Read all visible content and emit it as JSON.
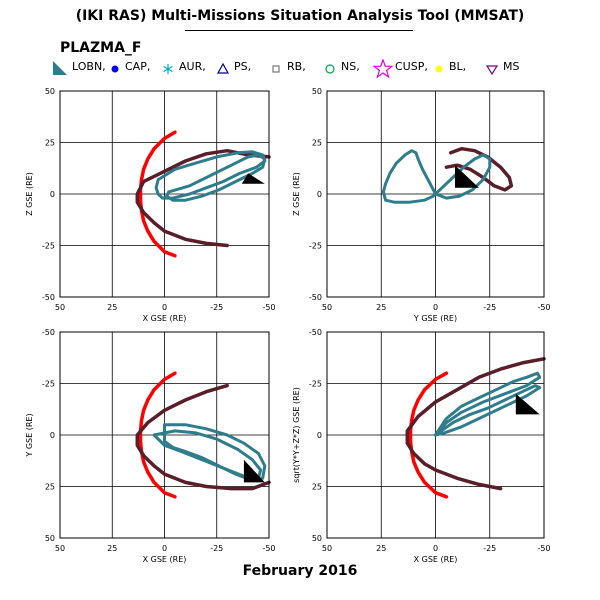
{
  "header": {
    "title": "(IKI RAS) Multi-Missions Situation Analysis Tool (MMSAT)",
    "mission": "PLAZMA_F"
  },
  "legend": [
    {
      "label": "LOBN,",
      "symbol": "lobe-triangle",
      "color": "#2E7D8C"
    },
    {
      "label": "CAP,",
      "symbol": "filled-circle",
      "color": "#0000FF"
    },
    {
      "label": "AUR,",
      "symbol": "asterisk",
      "color": "#00AACC"
    },
    {
      "label": "PS,",
      "symbol": "open-triangle",
      "color": "#000080"
    },
    {
      "label": "RB,",
      "symbol": "open-square",
      "color": "#777777"
    },
    {
      "label": "NS,",
      "symbol": "open-circle",
      "color": "#00A050"
    },
    {
      "label": "CUSP,",
      "symbol": "open-star",
      "color": "#E000E0"
    },
    {
      "label": "BL,",
      "symbol": "filled-circle",
      "color": "#FFFF00"
    },
    {
      "label": "MS",
      "symbol": "open-triangle-down",
      "color": "#800080"
    }
  ],
  "footer": {
    "date": "February 2016"
  },
  "colors": {
    "magnetopause": "#FF0000",
    "bow_shock": "#5A1E2A",
    "orbit": "#2E7D8C",
    "sun_marker": "#000000"
  },
  "chart_data": [
    {
      "type": "scatter",
      "panel": "top-left",
      "xlabel": "X GSE (RE)",
      "ylabel": "Z GSE (RE)",
      "xlim": [
        50,
        -50
      ],
      "ylim": [
        -50,
        50
      ],
      "xticks": [
        "50",
        "25",
        "0",
        "-25",
        "-50"
      ],
      "yticks": [
        "-50",
        "-25",
        "0",
        "25",
        "50"
      ],
      "grid": true,
      "series": [
        {
          "kind": "magnetopause",
          "points": [
            [
              -5,
              30
            ],
            [
              0,
              27
            ],
            [
              5,
              22
            ],
            [
              8,
              17
            ],
            [
              10,
              12
            ],
            [
              11,
              7
            ],
            [
              11.5,
              2
            ],
            [
              11.5,
              -3
            ],
            [
              11,
              -8
            ],
            [
              10,
              -13
            ],
            [
              8,
              -18
            ],
            [
              5,
              -23
            ],
            [
              0,
              -28
            ],
            [
              -5,
              -30
            ]
          ]
        },
        {
          "kind": "bow_shock",
          "points": [
            [
              -50,
              18
            ],
            [
              -40,
              19
            ],
            [
              -30,
              21
            ],
            [
              -20,
              19.5
            ],
            [
              -10,
              16
            ],
            [
              0,
              11
            ],
            [
              10,
              6
            ],
            [
              13,
              0
            ],
            [
              13,
              -4
            ],
            [
              10,
              -9
            ],
            [
              5,
              -14
            ],
            [
              0,
              -18
            ],
            [
              -10,
              -22
            ],
            [
              -20,
              -24
            ],
            [
              -30,
              -25
            ]
          ]
        },
        {
          "kind": "orbit",
          "points": [
            [
              3,
              7
            ],
            [
              -5,
              12
            ],
            [
              -15,
              15
            ],
            [
              -25,
              18
            ],
            [
              -35,
              20
            ],
            [
              -42,
              20.5
            ],
            [
              -47,
              19
            ],
            [
              -48,
              16
            ],
            [
              -44,
              13
            ],
            [
              -36,
              10
            ],
            [
              -28,
              6
            ],
            [
              -20,
              3
            ],
            [
              -12,
              0
            ],
            [
              -4,
              -2
            ],
            [
              1,
              -2
            ],
            [
              3,
              0
            ],
            [
              4,
              3
            ],
            [
              3,
              7
            ]
          ]
        },
        {
          "kind": "orbit",
          "points": [
            [
              -2,
              1
            ],
            [
              -12,
              4
            ],
            [
              -22,
              9
            ],
            [
              -32,
              14
            ],
            [
              -40,
              18
            ],
            [
              -45,
              19
            ],
            [
              -48,
              17
            ],
            [
              -47,
              13
            ],
            [
              -42,
              10
            ],
            [
              -34,
              6
            ],
            [
              -26,
              2
            ],
            [
              -18,
              -1
            ],
            [
              -10,
              -3
            ],
            [
              -4,
              -3
            ],
            [
              -1,
              -1
            ],
            [
              -2,
              1
            ]
          ]
        },
        {
          "kind": "sun",
          "points": [
            [
              -37,
              5
            ],
            [
              -40,
              10
            ],
            [
              -48,
              5
            ]
          ]
        }
      ]
    },
    {
      "type": "scatter",
      "panel": "top-right",
      "xlabel": "Y GSE (RE)",
      "ylabel": "Z GSE (RE)",
      "xlim": [
        50,
        -50
      ],
      "ylim": [
        -50,
        50
      ],
      "xticks": [
        "50",
        "25",
        "0",
        "-25",
        "-50"
      ],
      "yticks": [
        "-50",
        "-25",
        "0",
        "25",
        "50"
      ],
      "grid": true,
      "series": [
        {
          "kind": "bow_shock",
          "points": [
            [
              -7,
              20
            ],
            [
              -12,
              22
            ],
            [
              -18,
              21
            ],
            [
              -24,
              18
            ],
            [
              -30,
              13
            ],
            [
              -34,
              8
            ],
            [
              -35,
              4
            ],
            [
              -32,
              2
            ],
            [
              -27,
              4
            ],
            [
              -22,
              8
            ],
            [
              -16,
              12
            ],
            [
              -10,
              14
            ],
            [
              -5,
              13
            ]
          ]
        },
        {
          "kind": "orbit",
          "points": [
            [
              0,
              0
            ],
            [
              3,
              6
            ],
            [
              6,
              12
            ],
            [
              8,
              17
            ],
            [
              9,
              20
            ],
            [
              11,
              21
            ],
            [
              14,
              19
            ],
            [
              18,
              15
            ],
            [
              21,
              10
            ],
            [
              23,
              5
            ],
            [
              24,
              1
            ],
            [
              23,
              -3
            ],
            [
              19,
              -4
            ],
            [
              12,
              -4
            ],
            [
              5,
              -3
            ],
            [
              1,
              -1
            ],
            [
              0,
              0
            ]
          ]
        },
        {
          "kind": "orbit",
          "points": [
            [
              0,
              0
            ],
            [
              -3,
              3
            ],
            [
              -8,
              8
            ],
            [
              -13,
              13
            ],
            [
              -18,
              17
            ],
            [
              -22,
              19
            ],
            [
              -25,
              17
            ],
            [
              -25,
              13
            ],
            [
              -22,
              7
            ],
            [
              -17,
              2
            ],
            [
              -11,
              -1
            ],
            [
              -5,
              -2
            ],
            [
              0,
              0
            ]
          ]
        },
        {
          "kind": "sun",
          "points": [
            [
              -9,
              3
            ],
            [
              -9,
              14
            ],
            [
              -20,
              3
            ]
          ]
        }
      ]
    },
    {
      "type": "scatter",
      "panel": "bottom-left",
      "xlabel": "X GSE (RE)",
      "ylabel": "Y GSE (RE)",
      "xlim": [
        50,
        -50
      ],
      "ylim": [
        50,
        -50
      ],
      "xticks": [
        "50",
        "25",
        "0",
        "-25",
        "-50"
      ],
      "yticks": [
        "-50",
        "-25",
        "0",
        "25",
        "50"
      ],
      "grid": true,
      "series": [
        {
          "kind": "magnetopause",
          "points": [
            [
              -5,
              -30
            ],
            [
              0,
              -27
            ],
            [
              5,
              -22
            ],
            [
              8,
              -17
            ],
            [
              10,
              -12
            ],
            [
              11,
              -7
            ],
            [
              11.5,
              -2
            ],
            [
              11.5,
              3
            ],
            [
              11,
              8
            ],
            [
              10,
              13
            ],
            [
              8,
              18
            ],
            [
              5,
              23
            ],
            [
              0,
              28
            ],
            [
              -5,
              30
            ]
          ]
        },
        {
          "kind": "bow_shock",
          "points": [
            [
              -30,
              -24
            ],
            [
              -20,
              -21
            ],
            [
              -10,
              -17
            ],
            [
              0,
              -12
            ],
            [
              8,
              -6
            ],
            [
              13,
              0
            ],
            [
              13,
              5
            ],
            [
              10,
              10
            ],
            [
              5,
              15
            ],
            [
              0,
              19
            ],
            [
              -10,
              23
            ],
            [
              -20,
              25
            ],
            [
              -32,
              26
            ],
            [
              -42,
              26
            ],
            [
              -50,
              23
            ]
          ]
        },
        {
          "kind": "orbit",
          "points": [
            [
              0,
              -5
            ],
            [
              -10,
              -5
            ],
            [
              -20,
              -3
            ],
            [
              -30,
              0
            ],
            [
              -38,
              4
            ],
            [
              -45,
              9
            ],
            [
              -48,
              15
            ],
            [
              -47,
              21
            ],
            [
              -42,
              22
            ],
            [
              -34,
              19
            ],
            [
              -26,
              15
            ],
            [
              -18,
              11
            ],
            [
              -10,
              8
            ],
            [
              -4,
              6
            ],
            [
              0,
              3
            ],
            [
              0,
              -5
            ]
          ]
        },
        {
          "kind": "orbit",
          "points": [
            [
              5,
              0
            ],
            [
              -5,
              -2
            ],
            [
              -15,
              -1
            ],
            [
              -25,
              2
            ],
            [
              -35,
              7
            ],
            [
              -42,
              12
            ],
            [
              -46,
              17
            ],
            [
              -45,
              21
            ],
            [
              -38,
              20
            ],
            [
              -28,
              16
            ],
            [
              -18,
              12
            ],
            [
              -8,
              8
            ],
            [
              0,
              5
            ],
            [
              5,
              0
            ]
          ]
        },
        {
          "kind": "sun",
          "points": [
            [
              -38,
              12
            ],
            [
              -38,
              23
            ],
            [
              -48,
              23
            ]
          ]
        }
      ]
    },
    {
      "type": "scatter",
      "panel": "bottom-right",
      "xlabel": "X GSE (RE)",
      "ylabel": "sqrt(Y*Y+Z*Z) GSE (RE)",
      "xlim": [
        50,
        -50
      ],
      "ylim": [
        50,
        -50
      ],
      "xticks": [
        "50",
        "25",
        "0",
        "-25",
        "-50"
      ],
      "yticks": [
        "-50",
        "-25",
        "0",
        "25",
        "50"
      ],
      "grid": true,
      "series": [
        {
          "kind": "magnetopause",
          "points": [
            [
              -5,
              -30
            ],
            [
              0,
              -27
            ],
            [
              5,
              -22
            ],
            [
              8,
              -17
            ],
            [
              10,
              -12
            ],
            [
              11,
              -7
            ],
            [
              11.5,
              -2
            ],
            [
              11.5,
              3
            ],
            [
              11,
              8
            ],
            [
              10,
              13
            ],
            [
              8,
              18
            ],
            [
              5,
              23
            ],
            [
              0,
              28
            ],
            [
              -5,
              30
            ]
          ]
        },
        {
          "kind": "bow_shock",
          "points": [
            [
              -50,
              -37
            ],
            [
              -40,
              -35
            ],
            [
              -30,
              -32
            ],
            [
              -20,
              -28
            ],
            [
              -10,
              -22
            ],
            [
              0,
              -16
            ],
            [
              8,
              -9
            ],
            [
              13,
              -2
            ],
            [
              13,
              4
            ],
            [
              10,
              9
            ],
            [
              5,
              14
            ],
            [
              0,
              17
            ],
            [
              -10,
              21
            ],
            [
              -20,
              24
            ],
            [
              -30,
              26
            ]
          ]
        },
        {
          "kind": "orbit",
          "points": [
            [
              0,
              0
            ],
            [
              -5,
              -8
            ],
            [
              -12,
              -14
            ],
            [
              -20,
              -18
            ],
            [
              -28,
              -22
            ],
            [
              -36,
              -26
            ],
            [
              -42,
              -28
            ],
            [
              -47,
              -30
            ],
            [
              -48,
              -28
            ],
            [
              -42,
              -24
            ],
            [
              -32,
              -20
            ],
            [
              -22,
              -16
            ],
            [
              -12,
              -11
            ],
            [
              -5,
              -6
            ],
            [
              0,
              0
            ]
          ]
        },
        {
          "kind": "orbit",
          "points": [
            [
              0,
              0
            ],
            [
              -8,
              -6
            ],
            [
              -16,
              -10
            ],
            [
              -24,
              -13
            ],
            [
              -32,
              -17
            ],
            [
              -40,
              -21
            ],
            [
              -46,
              -24
            ],
            [
              -48,
              -23
            ],
            [
              -42,
              -19
            ],
            [
              -32,
              -14
            ],
            [
              -22,
              -9
            ],
            [
              -12,
              -4
            ],
            [
              -4,
              -1
            ],
            [
              0,
              0
            ]
          ]
        },
        {
          "kind": "sun",
          "points": [
            [
              -37,
              -20
            ],
            [
              -37,
              -10
            ],
            [
              -48,
              -10
            ]
          ]
        }
      ]
    }
  ]
}
